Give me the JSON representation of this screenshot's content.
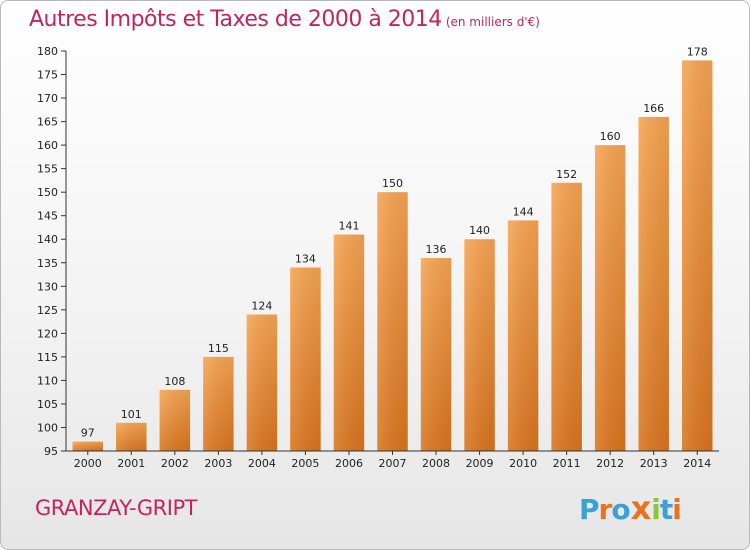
{
  "header": {
    "title": "Autres Impôts et Taxes de 2000 à 2014",
    "subtitle": "(en milliers d'€)"
  },
  "footer": {
    "commune": "GRANZAY-GRIPT",
    "logo_letters": [
      "P",
      "r",
      "o",
      "x",
      "i",
      "t",
      "i"
    ],
    "logo_colors": [
      "#3aa0d8",
      "#e8731c",
      "#3aa0d8",
      "#e8731c",
      "#8cc63f",
      "#3aa0d8",
      "#e8731c"
    ]
  },
  "chart_data": {
    "type": "bar",
    "title": "Autres Impôts et Taxes de 2000 à 2014",
    "subtitle": "(en milliers d'€)",
    "categories": [
      "2000",
      "2001",
      "2002",
      "2003",
      "2004",
      "2005",
      "2006",
      "2007",
      "2008",
      "2009",
      "2010",
      "2011",
      "2012",
      "2013",
      "2014"
    ],
    "values": [
      97,
      101,
      108,
      115,
      124,
      134,
      141,
      150,
      136,
      140,
      144,
      152,
      160,
      166,
      178
    ],
    "ylim": [
      95,
      180
    ],
    "yticks": [
      95,
      100,
      105,
      110,
      115,
      120,
      125,
      130,
      135,
      140,
      145,
      150,
      155,
      160,
      165,
      170,
      175,
      180
    ],
    "grid": false,
    "bar_color": "#f0923a",
    "bar_color_dark": "#d9741e",
    "xlabel": "",
    "ylabel": ""
  }
}
